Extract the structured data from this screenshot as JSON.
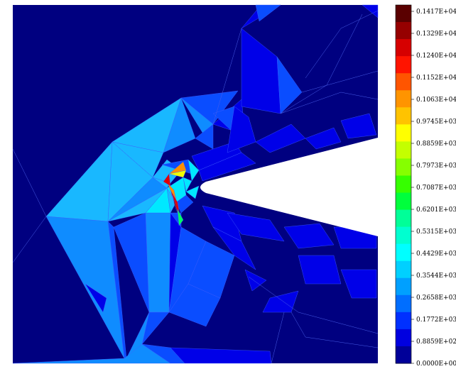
{
  "chart_data": {
    "type": "heatmap",
    "title": "",
    "xlabel": "",
    "ylabel": "",
    "colorbar": {
      "min": 0,
      "max": 1417,
      "labels": [
        "0.1417E+04",
        "0.1329E+04",
        "0.1240E+04",
        "0.1152E+04",
        "0.1063E+04",
        "0.9745E+03",
        "0.8859E+03",
        "0.7973E+03",
        "0.7087E+03",
        "0.6201E+03",
        "0.5315E+03",
        "0.4429E+03",
        "0.3544E+03",
        "0.2658E+03",
        "0.1772E+03",
        "0.8859E+02",
        "0.0000E+00"
      ],
      "band_colors": [
        "#5a0000",
        "#960000",
        "#d60000",
        "#ff1400",
        "#ff5500",
        "#ff9400",
        "#ffc300",
        "#ffff00",
        "#c4ff00",
        "#86ff00",
        "#36ff00",
        "#00ff3c",
        "#00ff98",
        "#00ffd0",
        "#00ffff",
        "#00d0ff",
        "#00a0ff",
        "#006eff",
        "#0030ff",
        "#0000e0",
        "#000099"
      ]
    },
    "field_colors": {
      "background": "#000080",
      "low_blue": "#0000e8",
      "mid_blue": "#0a4dff",
      "light_blue": "#0f8cff",
      "cyan_blue": "#19b8ff",
      "cyan": "#00e8ff",
      "green": "#00ff60",
      "yellow": "#f0ff00",
      "orange": "#ff9000",
      "red": "#e00000",
      "dark_red": "#700000",
      "notch": "#ffffff"
    }
  }
}
